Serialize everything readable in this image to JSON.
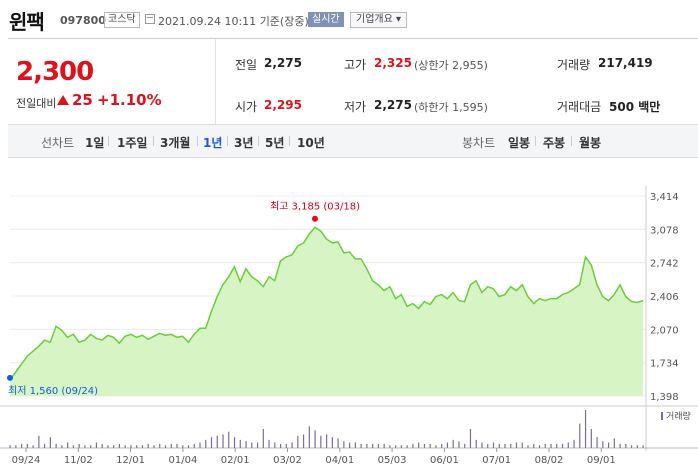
{
  "header": {
    "name": "윈팩",
    "code": "097800",
    "market": "코스닥",
    "datetime": "2021.09.24 10:11",
    "basis": "기준(장중)",
    "realtime_label": "실시간",
    "overview_label": "기업개요 ▾"
  },
  "quote": {
    "price": "2,300",
    "change_label": "전일대비",
    "change": "25",
    "change_pct": "+1.10%",
    "prev_label": "전일",
    "prev": "2,275",
    "open_label": "시가",
    "open": "2,295",
    "high_label": "고가",
    "high": "2,325",
    "upper_limit": "(상한가 2,955)",
    "low_label": "저가",
    "low": "2,275",
    "lower_limit": "(하한가 1,595)",
    "volume_label": "거래량",
    "volume": "217,419",
    "amount_label": "거래대금",
    "amount": "500 백만"
  },
  "toolbar": {
    "line_label": "선차트",
    "ranges": [
      "1일",
      "1주일",
      "3개월",
      "1년",
      "3년",
      "5년",
      "10년"
    ],
    "selected": "1년",
    "candle_label": "봉차트",
    "candles": [
      "일봉",
      "주봉",
      "월봉"
    ]
  },
  "colors": {
    "up": "#e0111a",
    "line": "#6ccd3c",
    "area": "#d9f5c8",
    "volume": "#7b6aa8"
  },
  "chart_data": {
    "type": "area",
    "y_ticks": [
      "3,414",
      "3,078",
      "2,742",
      "2,406",
      "2,070",
      "1,734",
      "1,398"
    ],
    "ylim": [
      1398,
      3414
    ],
    "x_ticks": [
      "09/24",
      "11/02",
      "12/01",
      "01/04",
      "02/01",
      "03/02",
      "04/01",
      "05/03",
      "06/01",
      "07/01",
      "08/02",
      "09/01"
    ],
    "max_label": "최고 3,185 (03/18)",
    "min_label": "최저 1,560 (09/24)",
    "volume_label": "거래량",
    "values": [
      1560,
      1640,
      1720,
      1800,
      1850,
      1900,
      1960,
      1940,
      2100,
      2060,
      1990,
      2020,
      1940,
      1960,
      2020,
      1980,
      1960,
      2010,
      1990,
      1930,
      2000,
      2020,
      1990,
      2010,
      1970,
      2000,
      2030,
      2010,
      2020,
      1990,
      2000,
      1940,
      2020,
      2080,
      2080,
      2250,
      2400,
      2520,
      2600,
      2700,
      2550,
      2680,
      2600,
      2560,
      2500,
      2600,
      2560,
      2760,
      2800,
      2820,
      2910,
      2940,
      3030,
      3100,
      3060,
      2980,
      2940,
      2950,
      2840,
      2850,
      2780,
      2780,
      2680,
      2560,
      2520,
      2460,
      2500,
      2380,
      2420,
      2300,
      2330,
      2280,
      2350,
      2320,
      2400,
      2420,
      2380,
      2440,
      2360,
      2350,
      2520,
      2560,
      2440,
      2500,
      2480,
      2400,
      2420,
      2500,
      2460,
      2520,
      2400,
      2330,
      2380,
      2360,
      2380,
      2380,
      2420,
      2440,
      2480,
      2520,
      2800,
      2720,
      2520,
      2400,
      2360,
      2420,
      2520,
      2400,
      2350,
      2340,
      2360
    ],
    "volume": [
      2,
      2,
      3,
      3,
      2,
      9,
      3,
      8,
      3,
      2,
      4,
      2,
      3,
      2,
      2,
      4,
      3,
      2,
      2,
      3,
      2,
      2,
      2,
      2,
      3,
      2,
      3,
      2,
      3,
      3,
      2,
      2,
      3,
      4,
      6,
      8,
      9,
      10,
      12,
      8,
      6,
      5,
      4,
      4,
      14,
      6,
      4,
      3,
      3,
      4,
      9,
      10,
      16,
      13,
      9,
      10,
      8,
      7,
      5,
      4,
      4,
      3,
      3,
      3,
      3,
      3,
      2,
      2,
      2,
      2,
      3,
      4,
      3,
      3,
      2,
      3,
      4,
      6,
      5,
      3,
      14,
      6,
      4,
      3,
      4,
      3,
      3,
      3,
      4,
      4,
      2,
      3,
      2,
      3,
      3,
      3,
      3,
      4,
      6,
      18,
      28,
      14,
      8,
      5,
      4,
      7,
      3,
      3,
      2,
      2,
      2
    ]
  }
}
